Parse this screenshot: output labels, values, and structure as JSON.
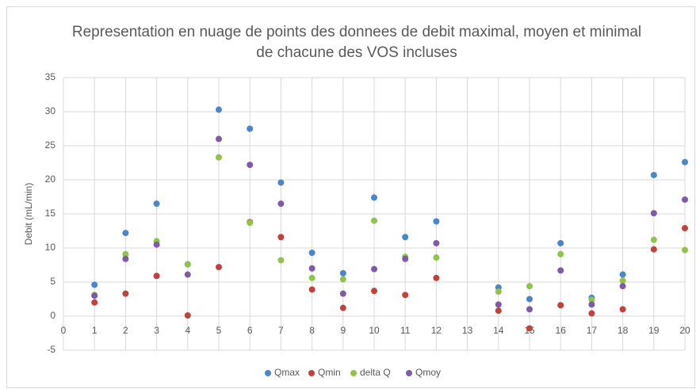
{
  "chart_data": {
    "type": "scatter",
    "title": "Representation en nuage de points des donnees de debit maximal, moyen et minimal de chacune des VOS incluses",
    "y_label": "Debit (mL/min)",
    "x": [
      1,
      2,
      3,
      4,
      5,
      6,
      7,
      8,
      9,
      10,
      11,
      12,
      14,
      15,
      16,
      17,
      18,
      19,
      20
    ],
    "series": [
      {
        "name": "Qmax",
        "color": "#4a86c8",
        "values": [
          4.6,
          12.2,
          16.5,
          7.6,
          30.3,
          27.5,
          19.6,
          9.3,
          6.3,
          17.4,
          11.6,
          13.9,
          4.2,
          2.5,
          10.7,
          2.7,
          6.1,
          20.7,
          22.6
        ]
      },
      {
        "name": "Qmin",
        "color": "#c0413e",
        "values": [
          2.0,
          3.3,
          5.9,
          0.1,
          7.2,
          13.8,
          11.6,
          3.9,
          1.2,
          3.7,
          3.1,
          5.6,
          0.8,
          -1.8,
          1.6,
          0.4,
          1.0,
          9.8,
          12.9
        ]
      },
      {
        "name": "delta Q",
        "color": "#8fc34a",
        "values": [
          3.1,
          9.1,
          11.0,
          7.6,
          23.3,
          13.7,
          8.2,
          5.6,
          5.4,
          14.0,
          8.7,
          8.6,
          3.6,
          4.4,
          9.1,
          2.4,
          5.2,
          11.2,
          9.7
        ]
      },
      {
        "name": "Qmoy",
        "color": "#7e5aa7",
        "values": [
          3.0,
          8.4,
          10.5,
          6.1,
          26.0,
          22.2,
          16.5,
          7.0,
          3.3,
          6.9,
          8.4,
          10.7,
          1.7,
          1.0,
          6.7,
          1.7,
          4.4,
          15.1,
          17.1
        ]
      }
    ],
    "xlim": [
      0,
      20
    ],
    "xticks": [
      0,
      1,
      2,
      3,
      4,
      5,
      6,
      7,
      8,
      9,
      10,
      11,
      12,
      13,
      14,
      15,
      16,
      17,
      18,
      19,
      20
    ],
    "ylim": [
      -5,
      35
    ],
    "yticks": [
      -5,
      0,
      5,
      10,
      15,
      20,
      25,
      30,
      35
    ],
    "grid": true,
    "legend": "bottom"
  }
}
